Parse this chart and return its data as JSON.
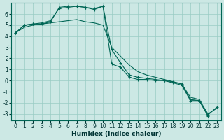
{
  "xlabel": "Humidex (Indice chaleur)",
  "background_color": "#cce8e4",
  "grid_color": "#99ccc4",
  "line_color": "#006655",
  "xlim": [
    -0.5,
    23.5
  ],
  "ylim": [
    -3.6,
    7.0
  ],
  "yticks": [
    -3,
    -2,
    -1,
    0,
    1,
    2,
    3,
    4,
    5,
    6
  ],
  "xticks": [
    0,
    1,
    2,
    3,
    4,
    5,
    6,
    7,
    8,
    9,
    10,
    11,
    12,
    13,
    14,
    15,
    16,
    17,
    18,
    19,
    20,
    21,
    22,
    23
  ],
  "line1_x": [
    0,
    1,
    2,
    3,
    4,
    5,
    6,
    7,
    8,
    9,
    10,
    11,
    12,
    13,
    14,
    15,
    16,
    17,
    18,
    19,
    20,
    21,
    22
  ],
  "line1_y": [
    4.3,
    5.0,
    5.1,
    5.1,
    5.3,
    6.6,
    6.7,
    6.7,
    6.6,
    6.4,
    6.7,
    1.5,
    1.2,
    0.3,
    0.1,
    0.1,
    0.0,
    0.0,
    -0.2,
    -0.4,
    -1.8,
    -1.8,
    -3.2
  ],
  "line2_x": [
    0,
    1,
    2,
    3,
    4,
    5,
    6,
    7,
    8,
    9,
    10,
    11,
    12,
    13,
    14,
    15,
    16,
    17,
    18,
    19,
    20,
    21,
    22,
    23
  ],
  "line2_y": [
    4.3,
    4.8,
    5.0,
    5.1,
    5.2,
    5.3,
    5.4,
    5.5,
    5.3,
    5.2,
    5.0,
    3.0,
    2.2,
    1.4,
    0.8,
    0.5,
    0.3,
    0.1,
    -0.1,
    -0.3,
    -1.5,
    -1.7,
    -3.0,
    -2.5
  ],
  "line3_x": [
    0,
    1,
    2,
    3,
    4,
    5,
    6,
    7,
    8,
    9,
    10,
    11,
    12,
    13,
    14,
    15,
    16,
    17,
    18,
    19,
    20,
    21,
    22,
    23
  ],
  "line3_y": [
    4.3,
    5.0,
    5.1,
    5.2,
    5.4,
    6.5,
    6.6,
    6.7,
    6.6,
    6.5,
    6.7,
    2.8,
    1.6,
    0.5,
    0.3,
    0.2,
    0.1,
    0.0,
    -0.1,
    -0.3,
    -1.7,
    -1.8,
    -3.1,
    -2.4
  ]
}
